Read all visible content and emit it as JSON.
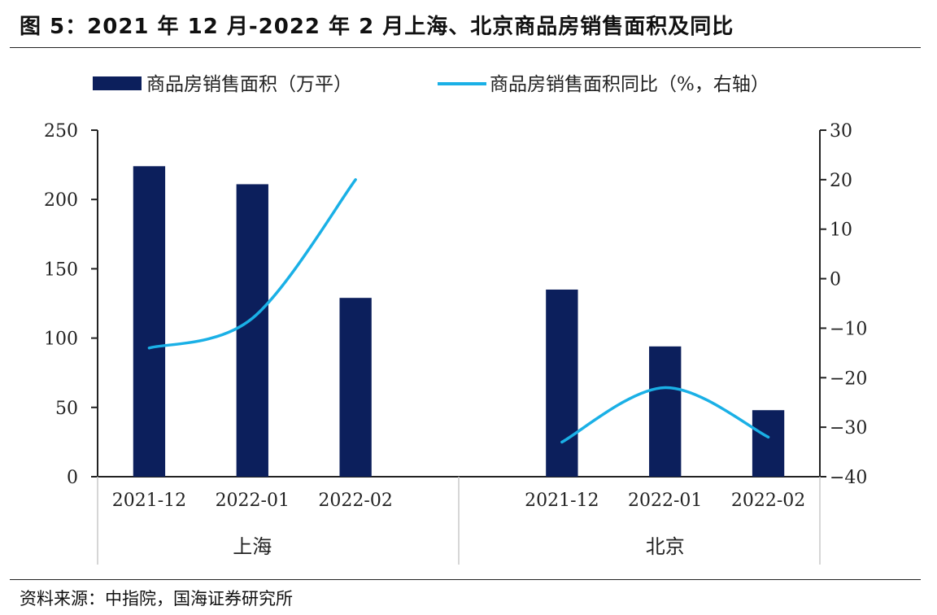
{
  "figure": {
    "title": "图 5：2021 年 12 月-2022 年 2 月上海、北京商品房销售面积及同比",
    "source": "资料来源：中指院，国海证券研究所"
  },
  "colors": {
    "bar": "#0c1f5c",
    "line": "#1ab0e6"
  },
  "chart_data": {
    "type": "bar",
    "groups": [
      "上海",
      "北京"
    ],
    "categories": [
      "2021-12",
      "2022-01",
      "2022-02"
    ],
    "series": [
      {
        "name": "商品房销售面积（万平）",
        "type": "bar",
        "axis": "left",
        "values": {
          "上海": [
            224,
            211,
            129
          ],
          "北京": [
            135,
            94,
            48
          ]
        }
      },
      {
        "name": "商品房销售面积同比（%，右轴）",
        "type": "line",
        "axis": "right",
        "values": {
          "上海": [
            -14,
            -8,
            20
          ],
          "北京": [
            -33,
            -22,
            -32
          ]
        }
      }
    ],
    "y_left": {
      "min": 0,
      "max": 250,
      "ticks": [
        0,
        50,
        100,
        150,
        200,
        250
      ]
    },
    "y_right": {
      "min": -40,
      "max": 30,
      "ticks": [
        -40,
        -30,
        -20,
        -10,
        0,
        10,
        20,
        30
      ]
    },
    "legend_position": "top",
    "grid": false
  }
}
